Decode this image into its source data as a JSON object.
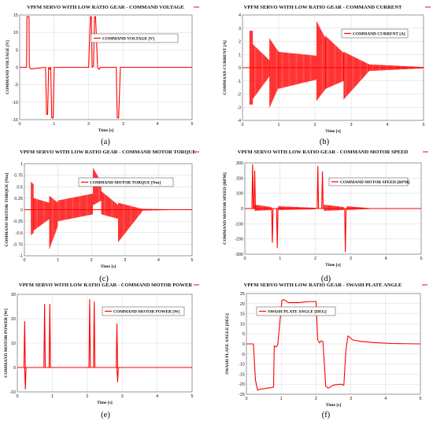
{
  "chart_data": [
    {
      "type": "line",
      "panel": "(a)",
      "title": "VPFM SERVO WITH LOW RATIO GEAR - COMMAND VOLTAGE",
      "xlabel": "Time [s]",
      "ylabel": "COMMAND VOLTAGE [V]",
      "xlim": [
        0,
        5
      ],
      "ylim": [
        -15,
        15
      ],
      "xticks": [
        0,
        1,
        2,
        3,
        4,
        5
      ],
      "yticks": [
        -15,
        -10,
        -5,
        0,
        5,
        10,
        15
      ],
      "grid": true,
      "legend_position": "top-left",
      "series": [
        {
          "name": "COMMAND VOLTAGE [V]",
          "color": "#ff0000",
          "x": [
            0,
            0.2,
            0.21,
            0.27,
            0.28,
            0.33,
            0.75,
            0.78,
            0.81,
            0.84,
            0.86,
            0.9,
            0.93,
            0.97,
            1.0,
            1.05,
            2.0,
            2.05,
            2.08,
            2.1,
            2.14,
            2.17,
            2.2,
            2.26,
            2.3,
            2.35,
            2.8,
            2.83,
            2.87,
            2.92,
            5.0
          ],
          "y": [
            0,
            0,
            14.5,
            14.5,
            0,
            -0.5,
            0,
            -13.5,
            -13.5,
            0,
            -0.6,
            0,
            -14.5,
            -14.5,
            0,
            0,
            0,
            14.5,
            14.5,
            0,
            0.3,
            14.5,
            14.5,
            0,
            -0.6,
            0,
            0,
            -14.5,
            -14.5,
            0,
            0
          ]
        }
      ]
    },
    {
      "type": "line",
      "panel": "(b)",
      "title": "VPFM SERVO WITH LOW RATIO GEAR - COMMAND CURRENT",
      "xlabel": "Time [s]",
      "ylabel": "COMMAND CURRENT [A]",
      "xlim": [
        0,
        5
      ],
      "ylim": [
        -4,
        4
      ],
      "xticks": [
        0,
        1,
        2,
        3,
        4,
        5
      ],
      "yticks": [
        -4,
        -3,
        -2,
        -1,
        0,
        1,
        2,
        3,
        4
      ],
      "grid": true,
      "legend_position": "top-right",
      "series": [
        {
          "name": "COMMAND CURRENT [A]",
          "color": "#ff0000",
          "envelope": [
            {
              "x": [
                0.2,
                0.28
              ],
              "hi": [
                2.8,
                2.8
              ],
              "lo": [
                -2.8,
                -2.8
              ]
            },
            {
              "x": [
                0.28,
                0.75
              ],
              "hi": [
                1.8,
                0.55
              ],
              "lo": [
                -2.4,
                -0.65
              ]
            },
            {
              "x": [
                0.75,
                1.0
              ],
              "hi": [
                2.2,
                1.2
              ],
              "lo": [
                -3.0,
                -1.5
              ]
            },
            {
              "x": [
                1.0,
                2.05
              ],
              "hi": [
                1.2,
                0.9
              ],
              "lo": [
                -1.6,
                -0.9
              ]
            },
            {
              "x": [
                2.05,
                2.3
              ],
              "hi": [
                3.5,
                2.2
              ],
              "lo": [
                -2.5,
                -1.6
              ]
            },
            {
              "x": [
                2.3,
                2.8
              ],
              "hi": [
                2.4,
                1.1
              ],
              "lo": [
                -1.6,
                -1.0
              ]
            },
            {
              "x": [
                2.8,
                3.5
              ],
              "hi": [
                1.2,
                0.25
              ],
              "lo": [
                -2.4,
                -0.25
              ]
            },
            {
              "x": [
                3.5,
                5.0
              ],
              "hi": [
                0.25,
                0.05
              ],
              "lo": [
                -0.25,
                -0.05
              ]
            }
          ]
        }
      ]
    },
    {
      "type": "line",
      "panel": "(c)",
      "title": "VPFM SERVO WITH LOW RATIO GEAR - COMMAND MOTOR TORQUE",
      "xlabel": "Time [s]",
      "ylabel": "COMMAND MOTOR TORQUE [Nm]",
      "xlim": [
        0,
        5
      ],
      "ylim": [
        -1.0,
        1.0
      ],
      "xticks": [
        0,
        1,
        2,
        3,
        4,
        5
      ],
      "yticks": [
        -1.0,
        -0.75,
        -0.5,
        -0.25,
        0.0,
        0.25,
        0.5,
        0.75,
        1.0
      ],
      "grid": true,
      "legend_position": "top-right",
      "series": [
        {
          "name": "COMMAND MOTOR TORQUE [Nm]",
          "color": "#ff0000",
          "envelope": [
            {
              "x": [
                0.2,
                0.28
              ],
              "hi": [
                0.6,
                0.55
              ],
              "lo": [
                -0.55,
                -0.5
              ]
            },
            {
              "x": [
                0.28,
                0.75
              ],
              "hi": [
                0.25,
                0.15
              ],
              "lo": [
                -0.45,
                -0.2
              ]
            },
            {
              "x": [
                0.75,
                1.0
              ],
              "hi": [
                0.3,
                0.15
              ],
              "lo": [
                -0.85,
                -0.35
              ]
            },
            {
              "x": [
                1.0,
                2.05
              ],
              "hi": [
                0.2,
                0.35
              ],
              "lo": [
                -0.25,
                -0.1
              ]
            },
            {
              "x": [
                2.05,
                2.3
              ],
              "hi": [
                0.9,
                0.6
              ],
              "lo": [
                0.1,
                0.2
              ]
            },
            {
              "x": [
                2.3,
                2.8
              ],
              "hi": [
                0.4,
                0.1
              ],
              "lo": [
                -0.1,
                -0.2
              ]
            },
            {
              "x": [
                2.8,
                3.5
              ],
              "hi": [
                0.15,
                0.02
              ],
              "lo": [
                -0.7,
                -0.05
              ]
            },
            {
              "x": [
                3.5,
                5.0
              ],
              "hi": [
                0.02,
                0.0
              ],
              "lo": [
                -0.02,
                0.0
              ]
            }
          ]
        }
      ]
    },
    {
      "type": "line",
      "panel": "(d)",
      "title": "VPFM SERVO WITH LOW RATIO GEAR - COMMAND MOTOR SPEED",
      "xlabel": "Time [s]",
      "ylabel": "COMMAND MOTOR SPEED [RPM]",
      "xlim": [
        0,
        5
      ],
      "ylim": [
        -300,
        300
      ],
      "xticks": [
        0,
        1,
        2,
        3,
        4,
        5
      ],
      "yticks": [
        -300,
        -200,
        -100,
        0,
        100,
        200,
        300
      ],
      "grid": true,
      "legend_position": "top-right",
      "series": [
        {
          "name": "COMMAND MOTOR SPEED [RPM]",
          "color": "#ff0000",
          "spikes": [
            {
              "x": 0.22,
              "y": 290
            },
            {
              "x": 0.28,
              "y": 250
            },
            {
              "x": 0.78,
              "y": -225
            },
            {
              "x": 0.92,
              "y": -260
            },
            {
              "x": 2.07,
              "y": 280
            },
            {
              "x": 2.2,
              "y": 245
            },
            {
              "x": 2.85,
              "y": -285
            }
          ],
          "envelope": [
            {
              "x": [
                0.28,
                0.75
              ],
              "hi": [
                25,
                10
              ],
              "lo": [
                -15,
                -10
              ]
            },
            {
              "x": [
                0.95,
                2.0
              ],
              "hi": [
                15,
                5
              ],
              "lo": [
                -10,
                -5
              ]
            },
            {
              "x": [
                2.25,
                2.8
              ],
              "hi": [
                25,
                10
              ],
              "lo": [
                -15,
                -10
              ]
            },
            {
              "x": [
                2.9,
                3.6
              ],
              "hi": [
                15,
                2
              ],
              "lo": [
                -10,
                -2
              ]
            }
          ]
        }
      ]
    },
    {
      "type": "line",
      "panel": "(e)",
      "title": "VPFM SERVO WITH LOW RATIO GEAR - COMMAND MOTOR POWER",
      "xlabel": "Time [s]",
      "ylabel": "COMMAND MOTOR POWER [W]",
      "xlim": [
        0,
        5
      ],
      "ylim": [
        -10,
        30
      ],
      "xticks": [
        0,
        1,
        2,
        3,
        4,
        5
      ],
      "yticks": [
        -10,
        0,
        10,
        20,
        30
      ],
      "grid": true,
      "legend_position": "top-right",
      "series": [
        {
          "name": "COMMAND MOTOR POWER [W]",
          "color": "#ff0000",
          "spikes": [
            {
              "x": 0.21,
              "y": 19
            },
            {
              "x": 0.23,
              "y": -9
            },
            {
              "x": 0.78,
              "y": 26
            },
            {
              "x": 0.93,
              "y": 26
            },
            {
              "x": 2.07,
              "y": 28
            },
            {
              "x": 2.2,
              "y": 27
            },
            {
              "x": 2.85,
              "y": 18
            },
            {
              "x": 2.87,
              "y": -6
            }
          ]
        }
      ]
    },
    {
      "type": "line",
      "panel": "(f)",
      "title": "VPFM SERVO WITH LOW RATIO GEAR - SWASH PLATE ANGLE",
      "xlabel": "Time [s]",
      "ylabel": "SWASH PLATE ANGLE [DEG]",
      "xlim": [
        0,
        5
      ],
      "ylim": [
        -25,
        25
      ],
      "xticks": [
        0,
        1,
        2,
        3,
        4,
        5
      ],
      "yticks": [
        -25,
        -20,
        -15,
        -10,
        -5,
        0,
        5,
        10,
        15,
        20,
        25
      ],
      "grid": true,
      "legend_position": "top-left",
      "series": [
        {
          "name": "SWASH PLATE ANGLE [DEG]",
          "color": "#ff0000",
          "x": [
            0,
            0.2,
            0.26,
            0.32,
            0.4,
            0.6,
            0.78,
            0.8,
            0.85,
            0.9,
            1.02,
            1.08,
            1.2,
            1.5,
            1.8,
            2.0,
            2.05,
            2.1,
            2.15,
            2.2,
            2.28,
            2.35,
            2.5,
            2.7,
            2.8,
            2.86,
            2.92,
            3.05,
            3.3,
            3.7,
            4.2,
            5.0
          ],
          "y": [
            0,
            0,
            -18,
            -23,
            -22.5,
            -22,
            -21.5,
            -1,
            -1.5,
            -0.5,
            21.5,
            22,
            20.5,
            20.5,
            21,
            21,
            2,
            0.5,
            1.5,
            1,
            -21,
            -22,
            -20.5,
            -20,
            -20.5,
            -3,
            4,
            2,
            1.2,
            0.6,
            0.2,
            0
          ]
        }
      ]
    }
  ],
  "panel_labels": [
    "(a)",
    "(b)",
    "(c)",
    "(d)",
    "(e)",
    "(f)"
  ]
}
